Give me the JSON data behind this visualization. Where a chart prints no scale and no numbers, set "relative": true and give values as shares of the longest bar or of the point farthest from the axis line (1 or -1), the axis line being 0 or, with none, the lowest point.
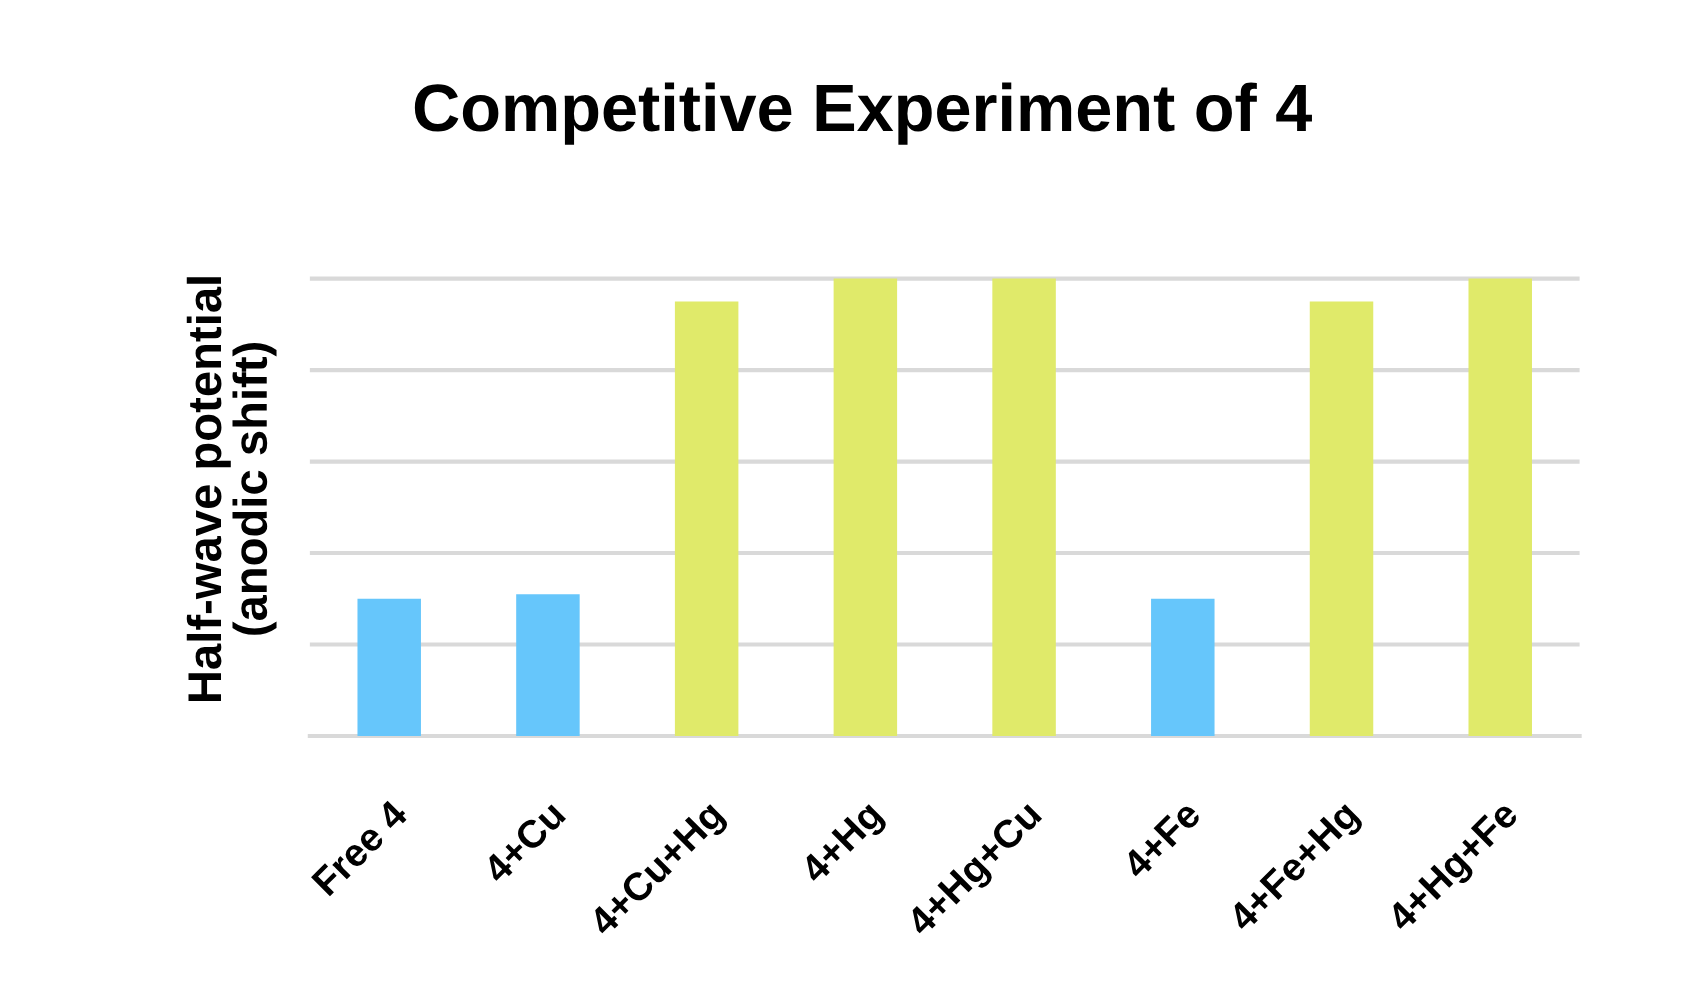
{
  "chart_data": {
    "type": "bar",
    "title": "Competitive Experiment of 4",
    "ylabel": "Half-wave potential\n(anodic shift)",
    "categories": [
      "Free 4",
      "4+Cu",
      "4+Cu+Hg",
      "4+Hg",
      "4+Hg+Cu",
      "4+Fe",
      "4+Fe+Hg",
      "4+Hg+Fe"
    ],
    "values": [
      0.3,
      0.31,
      0.95,
      1,
      1,
      0.3,
      0.95,
      1
    ],
    "colors": [
      "#66c6fb",
      "#66c6fb",
      "#e0ea6a",
      "#e0ea6a",
      "#e0ea6a",
      "#66c6fb",
      "#e0ea6a",
      "#e0ea6a"
    ],
    "relative": true,
    "grid": "y"
  }
}
